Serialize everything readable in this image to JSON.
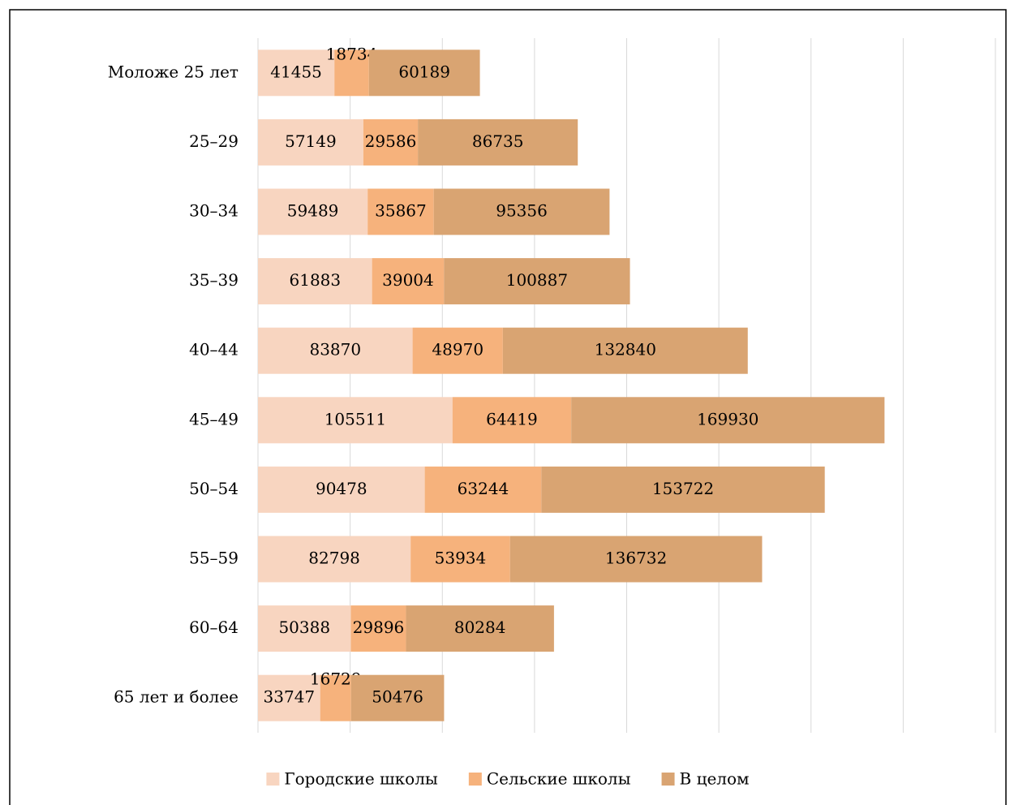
{
  "chart_data": {
    "type": "stacked-barh",
    "categories": [
      "Моложе 25 лет",
      "25–29",
      "30–34",
      "35–39",
      "40–44",
      "45–49",
      "50–54",
      "55–59",
      "60–64",
      "65 лет и более"
    ],
    "series": [
      {
        "name": "Городские школы",
        "color": "#f8d5c0",
        "values": [
          41455,
          57149,
          59489,
          61883,
          83870,
          105511,
          90478,
          82798,
          50388,
          33747
        ]
      },
      {
        "name": "Сельские школы",
        "color": "#f6b27c",
        "values": [
          18734,
          29586,
          35867,
          39004,
          48970,
          64419,
          63244,
          53934,
          29896,
          16729
        ]
      },
      {
        "name": "В целом",
        "color": "#d9a472",
        "values": [
          60189,
          86735,
          95356,
          100887,
          132840,
          169930,
          153722,
          136732,
          80284,
          50476
        ]
      }
    ],
    "xlim": [
      0,
      400000
    ],
    "xticks": [
      0,
      50000,
      100000,
      150000,
      200000,
      250000,
      300000,
      350000,
      400000
    ],
    "grid": true,
    "legend": "bottom"
  }
}
